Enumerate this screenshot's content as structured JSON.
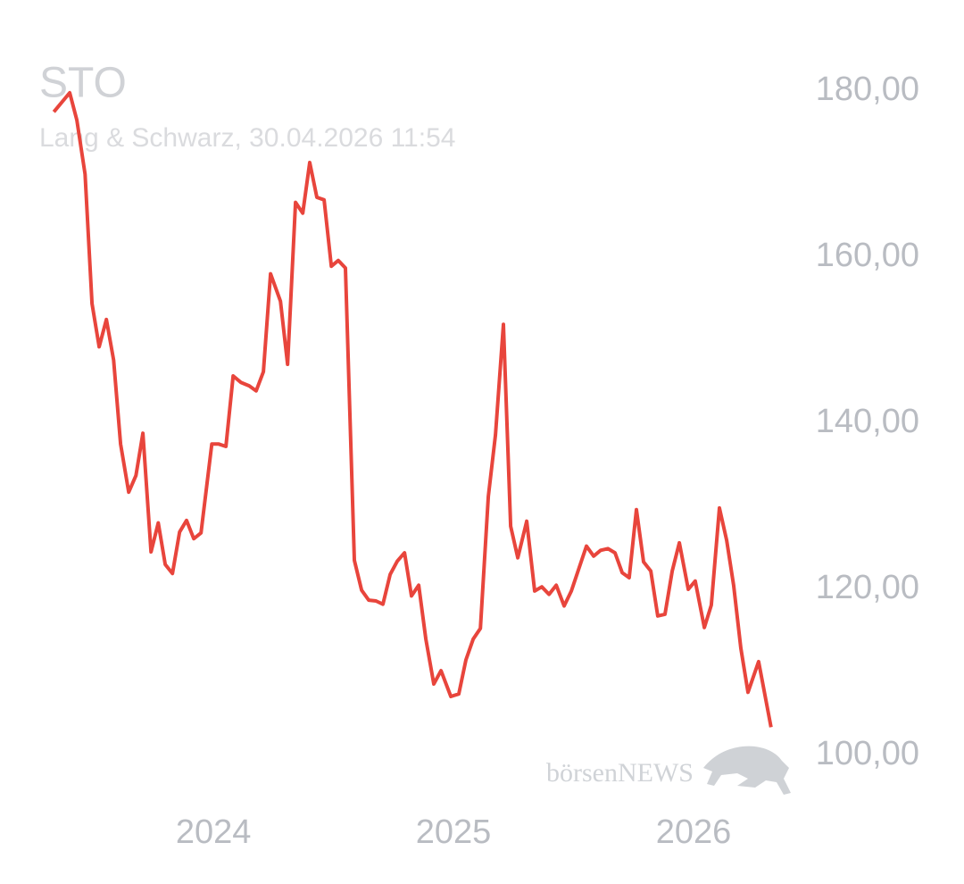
{
  "chart_data": {
    "type": "line",
    "title": "STO",
    "subtitle": "Lang & Schwarz, 30.04.2026 11:54",
    "watermark": "börsenNEWS",
    "color": "#e8453c",
    "x": [
      2023.335,
      2023.401,
      2023.431,
      2023.465,
      2023.494,
      2023.524,
      2023.554,
      2023.584,
      2023.613,
      2023.647,
      2023.677,
      2023.706,
      2023.74,
      2023.77,
      2023.799,
      2023.829,
      2023.859,
      2023.888,
      2023.918,
      2023.948,
      2023.993,
      2024.022,
      2024.052,
      2024.082,
      2024.115,
      2024.149,
      2024.178,
      2024.208,
      2024.238,
      2024.279,
      2024.309,
      2024.342,
      2024.372,
      2024.401,
      2024.431,
      2024.461,
      2024.491,
      2024.52,
      2024.55,
      2024.587,
      2024.617,
      2024.647,
      2024.677,
      2024.706,
      2024.736,
      2024.766,
      2024.796,
      2024.825,
      2024.855,
      2024.885,
      2024.918,
      2024.948,
      2024.989,
      2025.022,
      2025.052,
      2025.082,
      2025.112,
      2025.145,
      2025.175,
      2025.208,
      2025.238,
      2025.268,
      2025.305,
      2025.338,
      2025.368,
      2025.398,
      2025.428,
      2025.461,
      2025.491,
      2025.52,
      2025.554,
      2025.584,
      2025.613,
      2025.643,
      2025.673,
      2025.703,
      2025.732,
      2025.762,
      2025.792,
      2025.822,
      2025.851,
      2025.881,
      2025.911,
      2025.941,
      2025.978,
      2026.007,
      2026.045,
      2026.074,
      2026.108,
      2026.138,
      2026.167,
      2026.197,
      2026.227,
      2026.271,
      2026.323
    ],
    "values": [
      177.5,
      179.8,
      176.5,
      170.0,
      154.4,
      149.2,
      152.5,
      147.6,
      137.5,
      131.7,
      133.7,
      138.8,
      124.5,
      128.0,
      123.0,
      121.9,
      126.9,
      128.3,
      126.1,
      126.8,
      137.5,
      137.5,
      137.2,
      145.7,
      144.9,
      144.5,
      143.9,
      146.2,
      158.0,
      154.7,
      147.1,
      166.6,
      165.3,
      171.4,
      167.2,
      166.9,
      158.9,
      159.6,
      158.7,
      123.5,
      119.9,
      118.7,
      118.6,
      118.2,
      121.8,
      123.4,
      124.4,
      119.2,
      120.5,
      114.0,
      108.6,
      110.2,
      107.1,
      107.4,
      111.5,
      114.0,
      115.3,
      131.2,
      138.6,
      151.9,
      127.6,
      123.8,
      128.2,
      119.8,
      120.3,
      119.4,
      120.5,
      118.0,
      119.8,
      122.3,
      125.2,
      124.0,
      124.7,
      124.9,
      124.4,
      122.0,
      121.4,
      129.6,
      123.3,
      122.2,
      116.8,
      117.0,
      122.2,
      125.6,
      120.0,
      121.0,
      115.4,
      118.1,
      129.8,
      125.9,
      120.5,
      112.9,
      107.6,
      111.3,
      103.4
    ],
    "xlim": [
      2023.2,
      2026.45
    ],
    "xticks": [
      2024,
      2025,
      2026
    ],
    "ylim": [
      95,
      185
    ],
    "yticks": [
      {
        "value": 100,
        "label": "100,00"
      },
      {
        "value": 120,
        "label": "120,00"
      },
      {
        "value": 140,
        "label": "140,00"
      },
      {
        "value": 160,
        "label": "160,00"
      },
      {
        "value": 180,
        "label": "180,00"
      }
    ],
    "grid": false
  }
}
